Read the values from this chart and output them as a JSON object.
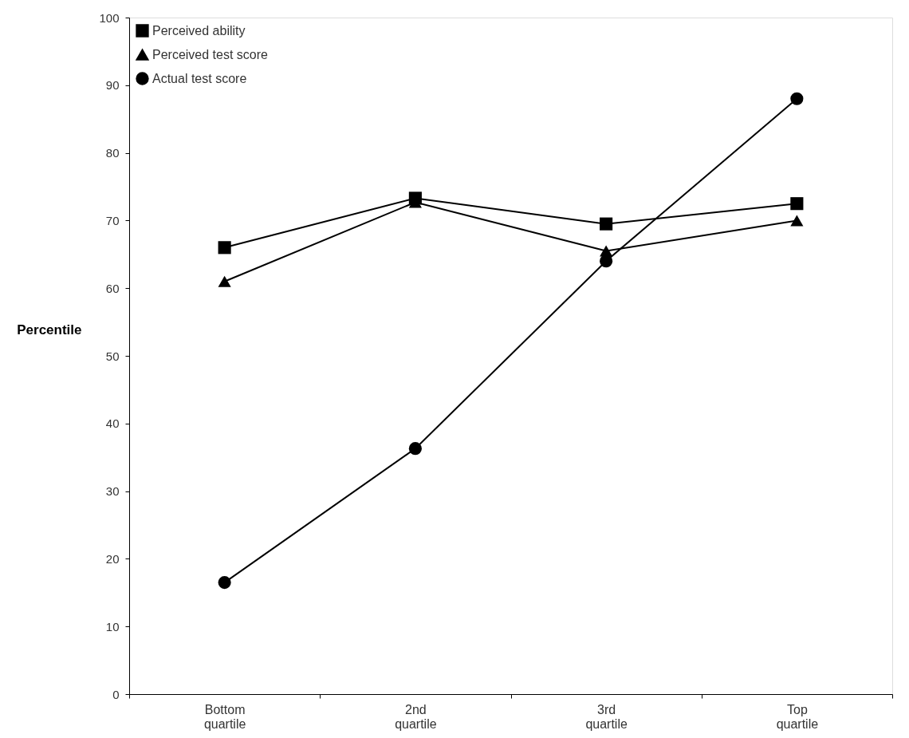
{
  "chart_data": {
    "type": "line",
    "ylabel": "Percentile",
    "categories": [
      "Bottom quartile",
      "2nd quartile",
      "3rd quartile",
      "Top quartile"
    ],
    "series": [
      {
        "name": "Perceived ability",
        "color": "#000000",
        "marker": "square",
        "values": [
          66,
          73.3,
          69.5,
          72.5
        ]
      },
      {
        "name": "Perceived test score",
        "color": "#000000",
        "marker": "triangle",
        "values": [
          61,
          72.7,
          65.5,
          70
        ]
      },
      {
        "name": "Actual test score",
        "color": "#000000",
        "marker": "circle",
        "values": [
          16.5,
          36.3,
          64,
          88
        ]
      }
    ],
    "ylim": [
      0,
      100
    ],
    "yticks": [
      0,
      10,
      20,
      30,
      40,
      50,
      60,
      70,
      80,
      90,
      100
    ],
    "grid": false,
    "legend": "top left",
    "line_style": "solid"
  }
}
